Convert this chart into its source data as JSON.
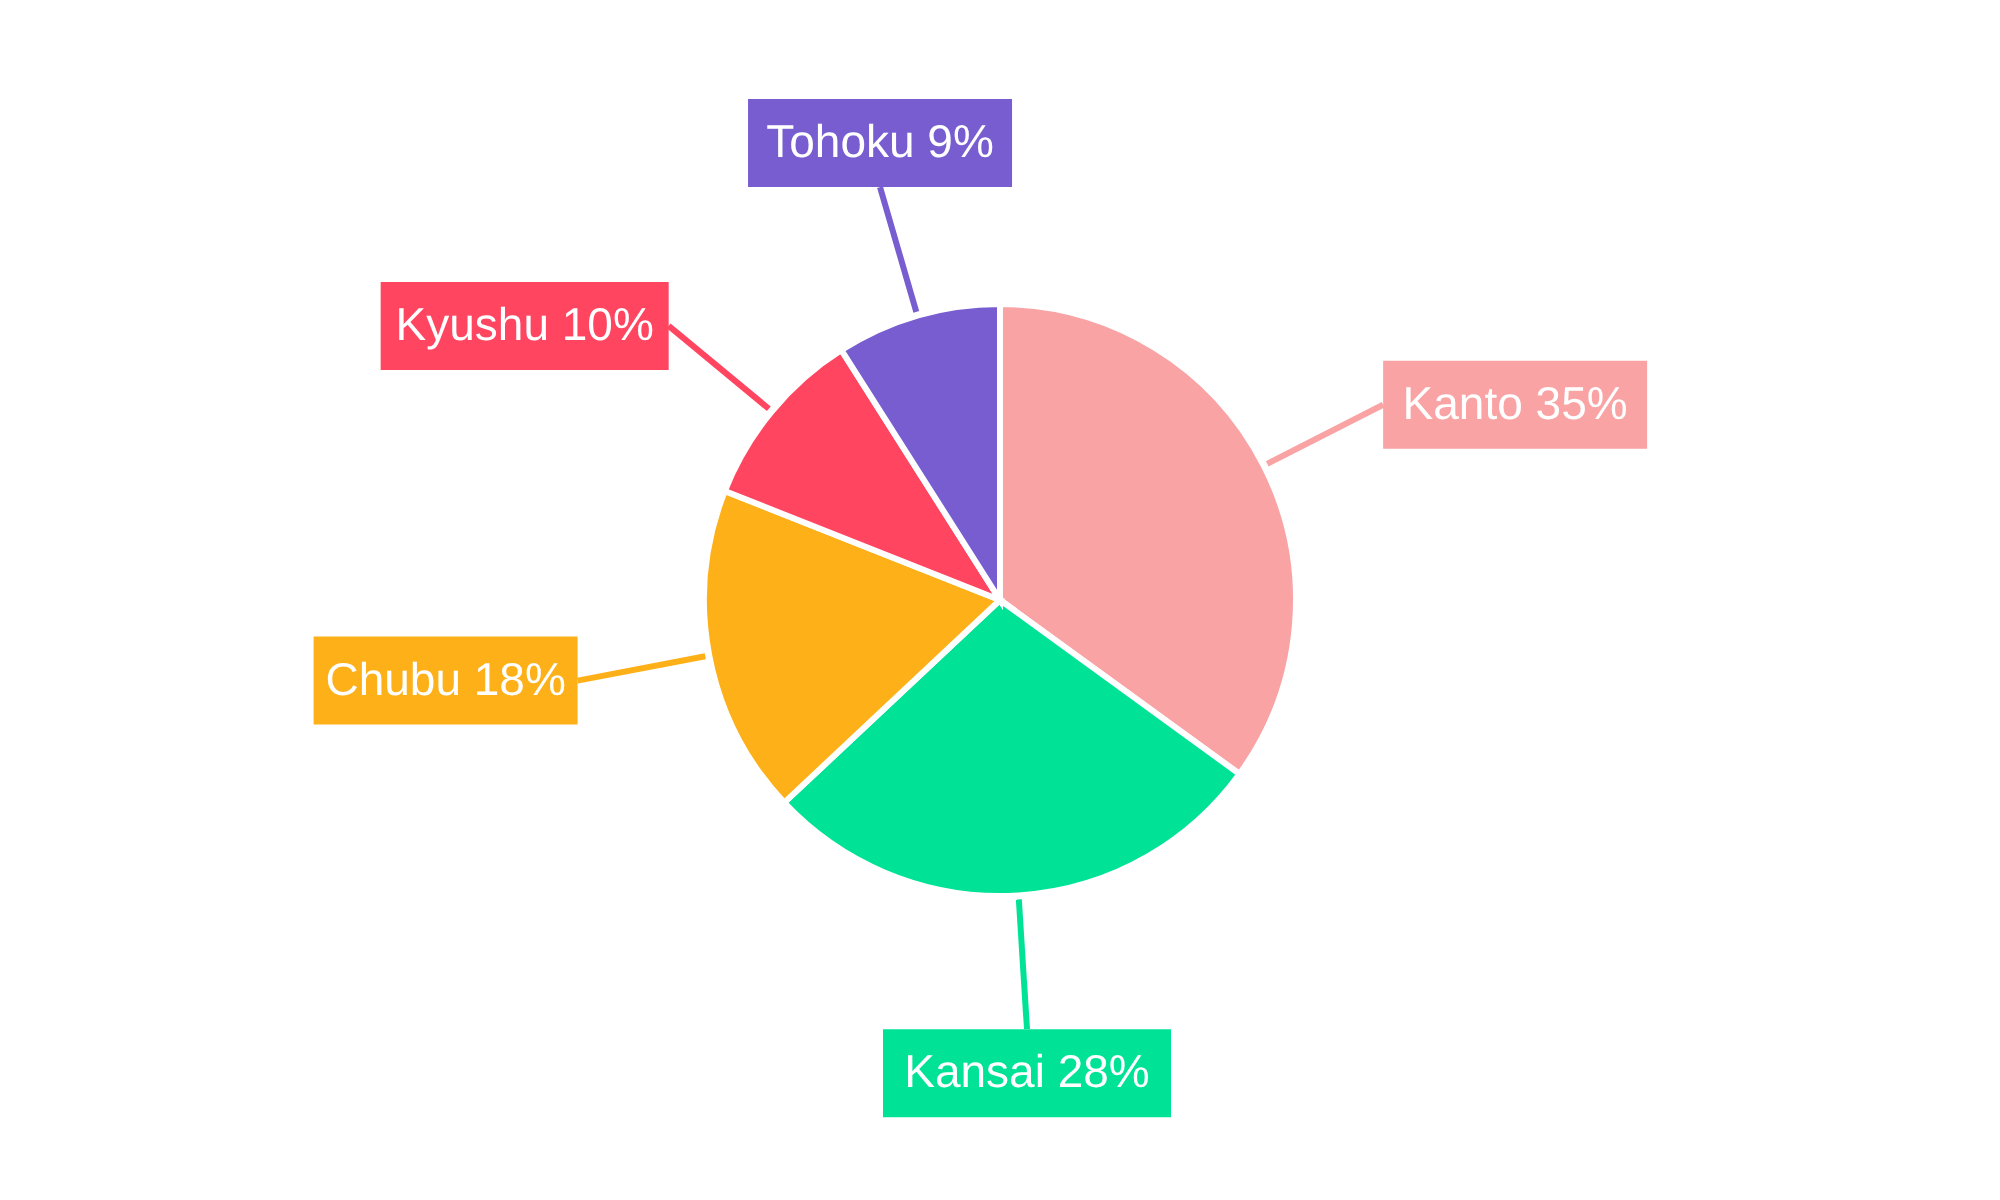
{
  "chart_data": {
    "type": "pie",
    "categories": [
      "Kanto",
      "Kansai",
      "Chubu",
      "Kyushu",
      "Tohoku"
    ],
    "values": [
      35,
      28,
      18,
      10,
      9
    ],
    "colors": [
      "#f9a3a4",
      "#00e396",
      "#feb019",
      "#ff4560",
      "#775dd0"
    ],
    "value_labels": [
      "35%",
      "28%",
      "18%",
      "10%",
      "9%"
    ]
  }
}
